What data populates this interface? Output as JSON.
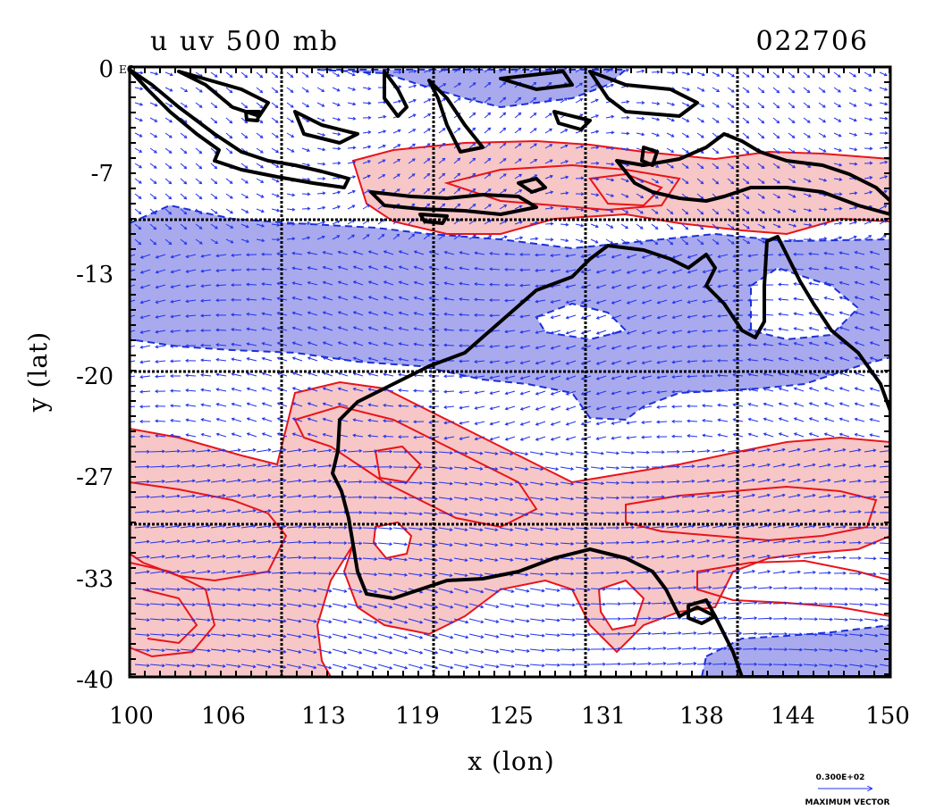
{
  "map": {
    "title_left": "u uv 500 mb",
    "title_right": "022706",
    "eq_label": "EQ",
    "xlabel": "x (lon)",
    "ylabel": "y (lat)",
    "x_ticks": [
      "100",
      "106",
      "113",
      "119",
      "125",
      "131",
      "138",
      "144",
      "150"
    ],
    "y_ticks": [
      "0",
      "-7",
      "-13",
      "-20",
      "-27",
      "-33",
      "-40"
    ],
    "lon_range": [
      100,
      150
    ],
    "lat_range": [
      -40,
      0
    ],
    "vector_legend_value": "0.300E+02",
    "vector_legend_label": "MAXIMUM VECTOR",
    "colors": {
      "positive_fill": "#f7c6c6",
      "positive_contour": "#e8141a",
      "negative_fill": "#a9aaee",
      "negative_contour": "#1a30d8",
      "vectors": "#2233ee",
      "coastline": "#000000",
      "grid": "#000000"
    }
  }
}
